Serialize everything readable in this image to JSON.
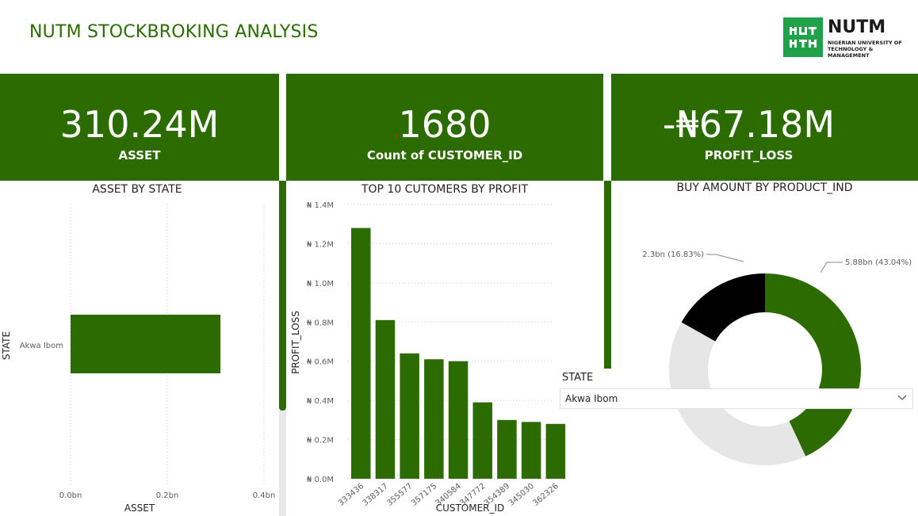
{
  "report_title": "NUTM STOCKBROKING ANALYSIS",
  "logo": {
    "word": "NUTM",
    "subtitle": "NIGERIAN UNIVERSITY OF TECHNOLOGY & MANAGEMENT",
    "color": "#1fa24a"
  },
  "kpis": [
    {
      "value": "310.24M",
      "label": "ASSET"
    },
    {
      "value": "1680",
      "label": "Count of CUSTOMER_ID"
    },
    {
      "value": "-₦67.18M",
      "label": "PROFIT_LOSS"
    }
  ],
  "colors": {
    "brand_green": "#2b6b00",
    "donut_black": "#000000",
    "donut_grey": "#e6e6e6"
  },
  "chart_data": [
    {
      "type": "bar",
      "orientation": "horizontal",
      "title": "ASSET BY STATE",
      "xlabel": "ASSET",
      "ylabel": "STATE",
      "categories": [
        "Akwa Ibom"
      ],
      "values": [
        0.31
      ],
      "xlim": [
        0,
        0.4
      ],
      "x_ticks": [
        "0.0bn",
        "0.2bn",
        "0.4bn"
      ],
      "grid": true
    },
    {
      "type": "bar",
      "title": "TOP 10 CUTOMERS BY PROFIT",
      "xlabel": "CUSTOMER_ID",
      "ylabel": "PROFIT_LOSS",
      "categories": [
        "333436",
        "338317",
        "355577",
        "357175",
        "340584",
        "347772",
        "354389",
        "345030",
        "362326"
      ],
      "values": [
        1.28,
        0.81,
        0.64,
        0.61,
        0.6,
        0.39,
        0.3,
        0.29,
        0.28
      ],
      "ylim": [
        0,
        1.4
      ],
      "y_ticks": [
        "₦ 0.0M",
        "₦ 0.2M",
        "₦ 0.4M",
        "₦ 0.6M",
        "₦ 0.8M",
        "₦ 1.0M",
        "₦ 1.2M",
        "₦ 1.4M"
      ],
      "grid": true
    },
    {
      "type": "pie",
      "variant": "half-donut",
      "title": "BUY AMOUNT BY PRODUCT_IND",
      "slices": [
        {
          "value": 5.88,
          "percent": 43.04,
          "label": "5.88bn (43.04%)",
          "color": "#2b6b00"
        },
        {
          "value": 2.3,
          "percent": 16.83,
          "label": "2.3bn (16.83%)",
          "color": "#000000"
        },
        {
          "value": 5.48,
          "percent": 40.13,
          "label": "",
          "color": "#e6e6e6"
        }
      ]
    }
  ],
  "slicer": {
    "label": "STATE",
    "selected": "Akwa Ibom"
  }
}
